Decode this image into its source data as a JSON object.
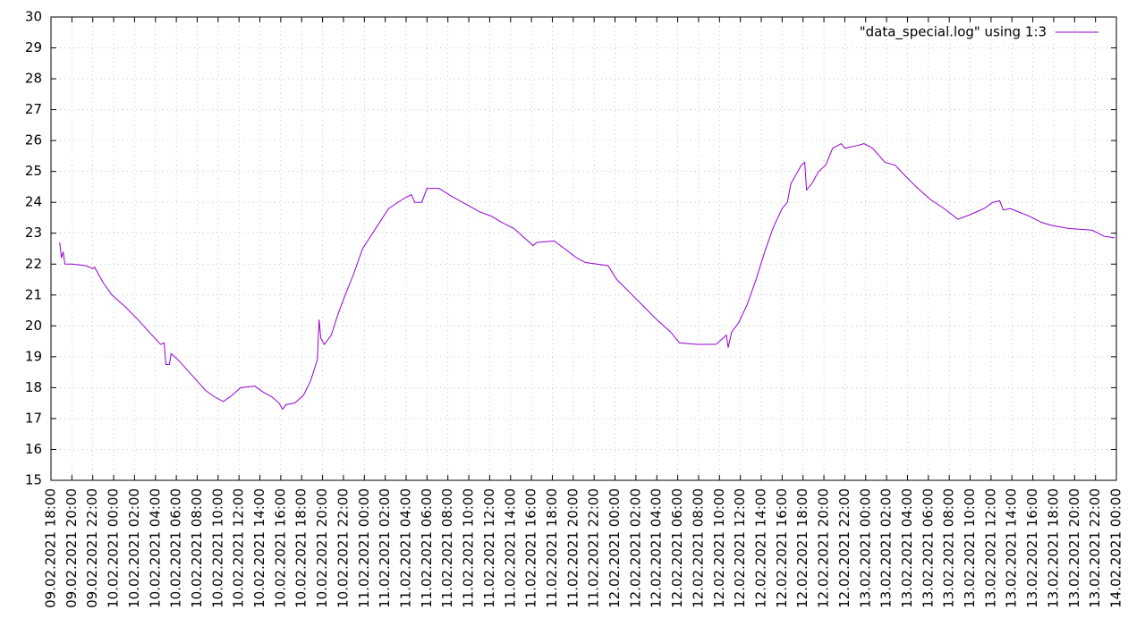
{
  "chart_data": {
    "type": "line",
    "x": [
      "09.02.2021 18:50",
      "09.02.2021 19:00",
      "09.02.2021 19:10",
      "09.02.2021 19:20",
      "09.02.2021 20:00",
      "09.02.2021 21:20",
      "09.02.2021 22:00",
      "09.02.2021 22:10",
      "09.02.2021 23:00",
      "09.02.2021 23:50",
      "10.02.2021 01:10",
      "10.02.2021 02:20",
      "10.02.2021 03:40",
      "10.02.2021 04:30",
      "10.02.2021 04:50",
      "10.02.2021 05:00",
      "10.02.2021 05:20",
      "10.02.2021 05:30",
      "10.02.2021 06:10",
      "10.02.2021 07:30",
      "10.02.2021 08:50",
      "10.02.2021 09:40",
      "10.02.2021 10:30",
      "10.02.2021 11:20",
      "10.02.2021 12:10",
      "10.02.2021 13:30",
      "10.02.2021 14:20",
      "10.02.2021 15:10",
      "10.02.2021 15:50",
      "10.02.2021 16:10",
      "10.02.2021 16:30",
      "10.02.2021 17:20",
      "10.02.2021 18:10",
      "10.02.2021 18:50",
      "10.02.2021 19:30",
      "10.02.2021 19:40",
      "10.02.2021 19:50",
      "10.02.2021 20:10",
      "10.02.2021 20:50",
      "10.02.2021 21:30",
      "10.02.2021 22:10",
      "10.02.2021 23:00",
      "10.02.2021 23:50",
      "11.02.2021 01:10",
      "11.02.2021 02:20",
      "11.02.2021 03:40",
      "11.02.2021 04:30",
      "11.02.2021 04:50",
      "11.02.2021 05:30",
      "11.02.2021 06:00",
      "11.02.2021 07:10",
      "11.02.2021 08:20",
      "11.02.2021 09:40",
      "11.02.2021 11:00",
      "11.02.2021 12:10",
      "11.02.2021 13:10",
      "11.02.2021 14:20",
      "11.02.2021 15:10",
      "11.02.2021 16:10",
      "11.02.2021 16:30",
      "11.02.2021 18:10",
      "11.02.2021 19:10",
      "11.02.2021 20:20",
      "11.02.2021 21:10",
      "11.02.2021 23:20",
      "12.02.2021 00:10",
      "12.02.2021 01:30",
      "12.02.2021 02:50",
      "12.02.2021 04:00",
      "12.02.2021 05:20",
      "12.02.2021 06:10",
      "12.02.2021 07:50",
      "12.02.2021 09:40",
      "12.02.2021 10:40",
      "12.02.2021 10:50",
      "12.02.2021 11:10",
      "12.02.2021 11:50",
      "12.02.2021 12:40",
      "12.02.2021 13:30",
      "12.02.2021 14:20",
      "12.02.2021 15:10",
      "12.02.2021 16:00",
      "12.02.2021 16:30",
      "12.02.2021 16:50",
      "12.02.2021 17:20",
      "12.02.2021 17:50",
      "12.02.2021 18:10",
      "12.02.2021 18:20",
      "12.02.2021 18:50",
      "12.02.2021 19:30",
      "12.02.2021 20:10",
      "12.02.2021 20:50",
      "12.02.2021 21:40",
      "12.02.2021 22:00",
      "12.02.2021 23:20",
      "12.02.2021 23:50",
      "13.02.2021 00:40",
      "13.02.2021 01:50",
      "13.02.2021 02:50",
      "13.02.2021 03:40",
      "13.02.2021 04:50",
      "13.02.2021 06:10",
      "13.02.2021 07:30",
      "13.02.2021 08:50",
      "13.02.2021 10:00",
      "13.02.2021 11:20",
      "13.02.2021 12:10",
      "13.02.2021 12:50",
      "13.02.2021 13:10",
      "13.02.2021 13:50",
      "13.02.2021 15:40",
      "13.02.2021 16:50",
      "13.02.2021 17:50",
      "13.02.2021 19:30",
      "13.02.2021 21:40",
      "13.02.2021 22:50",
      "13.02.2021 23:50"
    ],
    "series": [
      {
        "name": "\"data_special.log\" using 1:3",
        "color": "#9400d3",
        "values": [
          22.7,
          22.2,
          22.4,
          22.0,
          22.0,
          21.95,
          21.85,
          21.9,
          21.4,
          21.0,
          20.6,
          20.2,
          19.7,
          19.4,
          19.45,
          18.75,
          18.75,
          19.1,
          18.9,
          18.4,
          17.9,
          17.7,
          17.55,
          17.75,
          18.0,
          18.05,
          17.85,
          17.7,
          17.5,
          17.3,
          17.45,
          17.5,
          17.75,
          18.2,
          18.9,
          20.2,
          19.6,
          19.4,
          19.7,
          20.4,
          21.0,
          21.7,
          22.5,
          23.2,
          23.8,
          24.1,
          24.25,
          24.0,
          24.0,
          24.45,
          24.45,
          24.2,
          23.95,
          23.7,
          23.55,
          23.35,
          23.15,
          22.9,
          22.6,
          22.7,
          22.75,
          22.5,
          22.2,
          22.05,
          21.95,
          21.5,
          21.05,
          20.6,
          20.2,
          19.8,
          19.45,
          19.4,
          19.4,
          19.7,
          19.3,
          19.8,
          20.1,
          20.7,
          21.5,
          22.4,
          23.2,
          23.8,
          24.0,
          24.6,
          24.9,
          25.2,
          25.3,
          24.4,
          24.6,
          25.0,
          25.2,
          25.75,
          25.9,
          25.75,
          25.85,
          25.9,
          25.75,
          25.3,
          25.2,
          24.9,
          24.5,
          24.1,
          23.8,
          23.45,
          23.6,
          23.8,
          24.0,
          24.05,
          23.75,
          23.8,
          23.55,
          23.35,
          23.25,
          23.15,
          23.1,
          22.9,
          22.85
        ]
      }
    ],
    "xlim": [
      "09.02.2021 18:00",
      "14.02.2021 00:00"
    ],
    "xticks": [
      "09.02.2021 18:00",
      "09.02.2021 20:00",
      "09.02.2021 22:00",
      "10.02.2021 00:00",
      "10.02.2021 02:00",
      "10.02.2021 04:00",
      "10.02.2021 06:00",
      "10.02.2021 08:00",
      "10.02.2021 10:00",
      "10.02.2021 12:00",
      "10.02.2021 14:00",
      "10.02.2021 16:00",
      "10.02.2021 18:00",
      "10.02.2021 20:00",
      "10.02.2021 22:00",
      "11.02.2021 00:00",
      "11.02.2021 02:00",
      "11.02.2021 04:00",
      "11.02.2021 06:00",
      "11.02.2021 08:00",
      "11.02.2021 10:00",
      "11.02.2021 12:00",
      "11.02.2021 14:00",
      "11.02.2021 16:00",
      "11.02.2021 18:00",
      "11.02.2021 20:00",
      "11.02.2021 22:00",
      "12.02.2021 00:00",
      "12.02.2021 02:00",
      "12.02.2021 04:00",
      "12.02.2021 06:00",
      "12.02.2021 08:00",
      "12.02.2021 10:00",
      "12.02.2021 12:00",
      "12.02.2021 14:00",
      "12.02.2021 16:00",
      "12.02.2021 18:00",
      "12.02.2021 20:00",
      "12.02.2021 22:00",
      "13.02.2021 00:00",
      "13.02.2021 02:00",
      "13.02.2021 04:00",
      "13.02.2021 06:00",
      "13.02.2021 08:00",
      "13.02.2021 10:00",
      "13.02.2021 12:00",
      "13.02.2021 14:00",
      "13.02.2021 16:00",
      "13.02.2021 18:00",
      "13.02.2021 20:00",
      "13.02.2021 22:00",
      "14.02.2021 00:00"
    ],
    "ylim": [
      15,
      30
    ],
    "yticks": [
      15,
      16,
      17,
      18,
      19,
      20,
      21,
      22,
      23,
      24,
      25,
      26,
      27,
      28,
      29,
      30
    ],
    "grid": true,
    "legend": "top-right"
  }
}
